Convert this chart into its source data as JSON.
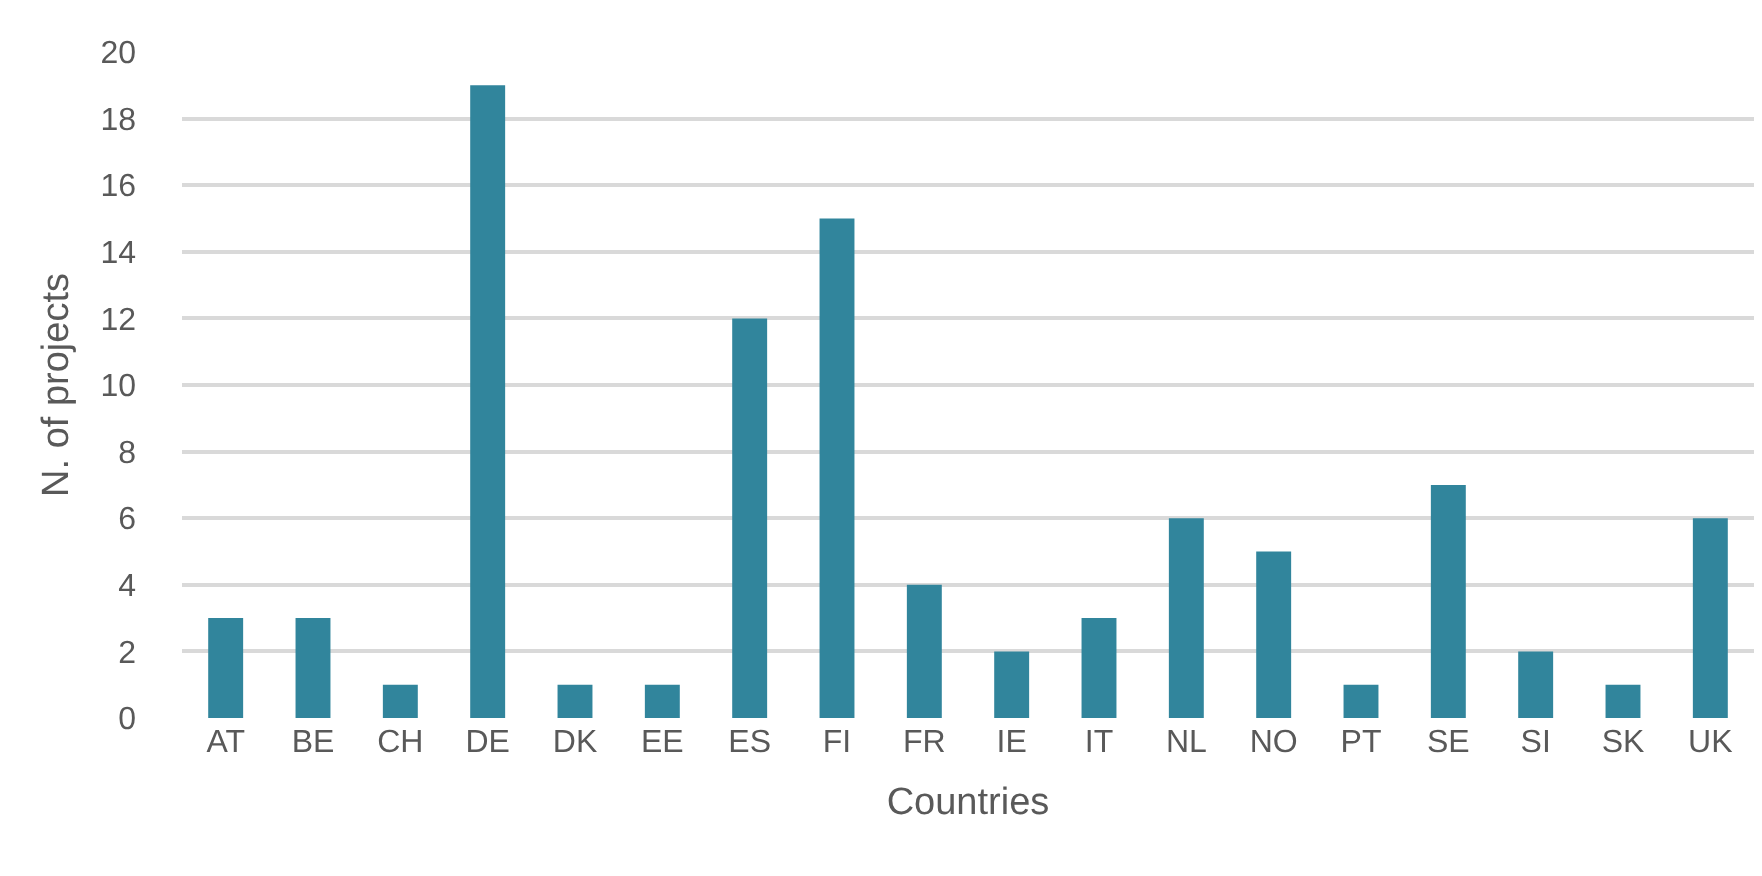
{
  "chart_data": {
    "type": "bar",
    "xlabel": "Countries",
    "ylabel": "N. of projects",
    "categories": [
      "AT",
      "BE",
      "CH",
      "DE",
      "DK",
      "EE",
      "ES",
      "FI",
      "FR",
      "IE",
      "IT",
      "NL",
      "NO",
      "PT",
      "SE",
      "SI",
      "SK",
      "UK"
    ],
    "values": [
      3,
      3,
      1,
      19,
      1,
      1,
      12,
      15,
      4,
      2,
      3,
      6,
      5,
      1,
      7,
      2,
      1,
      6
    ],
    "color": "#31859c",
    "ylim": [
      0,
      20
    ],
    "yticks": [
      0,
      2,
      4,
      6,
      8,
      10,
      12,
      14,
      16,
      18,
      20
    ],
    "grid": "y"
  }
}
